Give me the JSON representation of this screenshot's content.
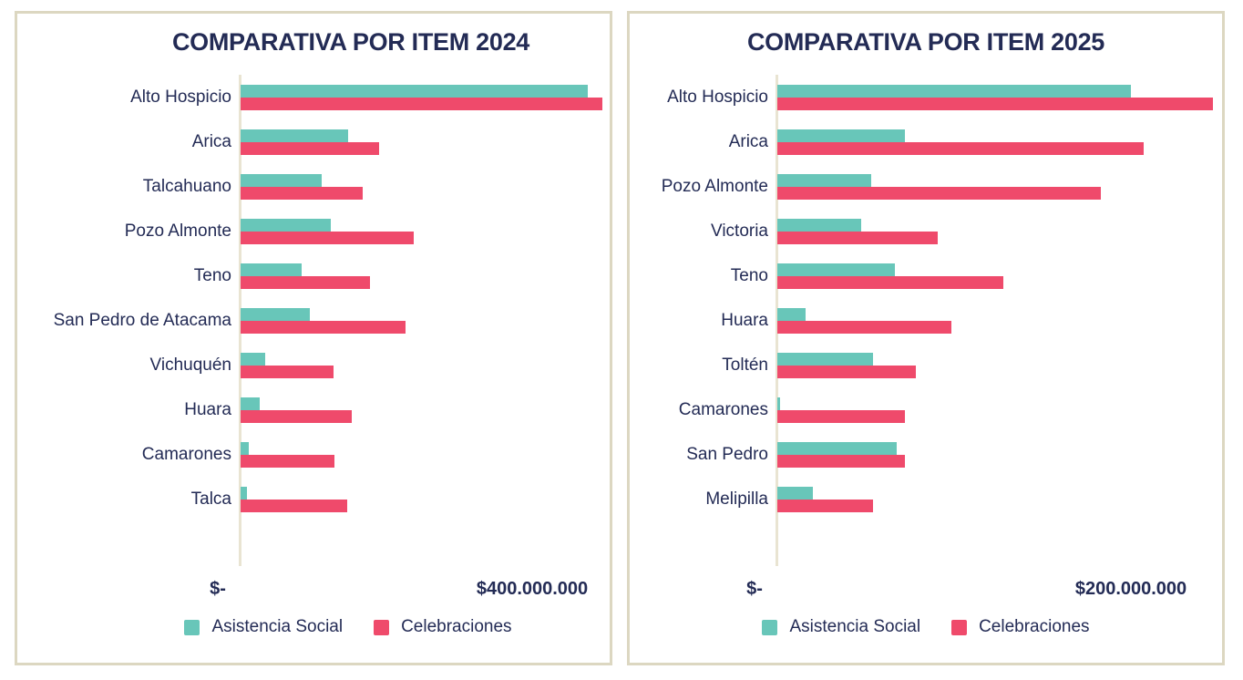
{
  "colors": {
    "navy_text": "#232B55",
    "teal": "#68C6B9",
    "pink": "#EF4A6B",
    "axis_line": "#E9E4D2",
    "card_border": "#DCD7C1"
  },
  "chart_data": [
    {
      "type": "bar",
      "orientation": "horizontal",
      "title": "COMPARATIVA POR ITEM 2024",
      "categories": [
        "Alto Hospicio",
        "Arica",
        "Talcahuano",
        "Pozo Almonte",
        "Teno",
        "San Pedro de Atacama",
        "Vichuquén",
        "Huara",
        "Camarones",
        "Talca"
      ],
      "series": [
        {
          "name": "Asistencia Social",
          "color": "#68C6B9",
          "values": [
            473000000,
            147000000,
            111000000,
            123000000,
            83000000,
            94000000,
            33000000,
            26000000,
            11000000,
            9000000
          ]
        },
        {
          "name": "Celebraciones",
          "color": "#EF4A6B",
          "values": [
            493000000,
            189000000,
            166000000,
            236000000,
            176000000,
            225000000,
            127000000,
            152000000,
            128000000,
            145000000
          ]
        }
      ],
      "x_axis": {
        "tick_labels": [
          "$-",
          "$400.000.000"
        ],
        "tick_values": [
          0,
          400000000
        ],
        "range": [
          0,
          500000000
        ],
        "grid": false
      },
      "legend": {
        "position": "bottom",
        "entries": [
          "Asistencia Social",
          "Celebraciones"
        ]
      }
    },
    {
      "type": "bar",
      "orientation": "horizontal",
      "title": "COMPARATIVA POR ITEM 2025",
      "categories": [
        "Alto Hospicio",
        "Arica",
        "Pozo Almonte",
        "Victoria",
        "Teno",
        "Huara",
        "Toltén",
        "Camarones",
        "San Pedro",
        "Melipilla"
      ],
      "series": [
        {
          "name": "Asistencia Social",
          "color": "#68C6B9",
          "values": [
            199000000,
            72000000,
            53000000,
            47000000,
            66000000,
            16000000,
            54000000,
            1500000,
            67000000,
            20000000
          ]
        },
        {
          "name": "Celebraciones",
          "color": "#EF4A6B",
          "values": [
            245000000,
            206000000,
            182000000,
            90000000,
            127000000,
            98000000,
            78000000,
            72000000,
            72000000,
            54000000
          ]
        }
      ],
      "x_axis": {
        "tick_labels": [
          "$-",
          "$200.000.000"
        ],
        "tick_values": [
          0,
          200000000
        ],
        "range": [
          0,
          254000000
        ],
        "grid": false
      },
      "legend": {
        "position": "bottom",
        "entries": [
          "Asistencia Social",
          "Celebraciones"
        ]
      }
    }
  ]
}
